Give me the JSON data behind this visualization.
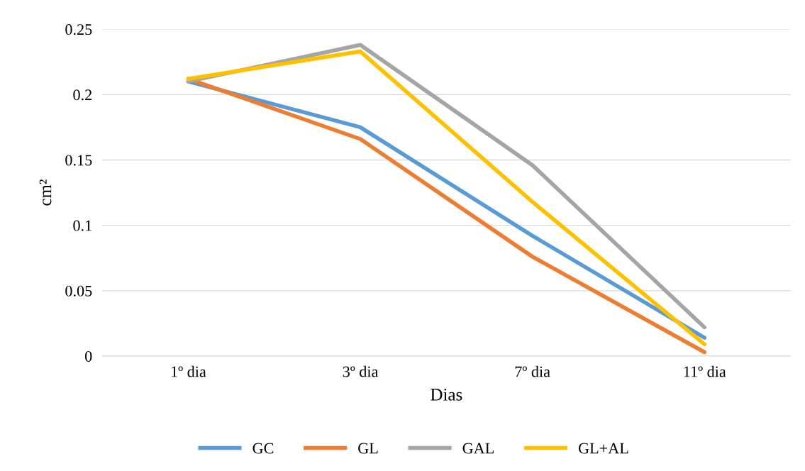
{
  "chart_data": {
    "type": "line",
    "xlabel": "Dias",
    "ylabel": "cm²",
    "categories": [
      "1º dia",
      "3º dia",
      "7º dia",
      "11º dia"
    ],
    "series": [
      {
        "name": "GC",
        "color": "#5b9bd5",
        "values": [
          0.21,
          0.175,
          0.092,
          0.014
        ]
      },
      {
        "name": "GL",
        "color": "#ed7d31",
        "values": [
          0.212,
          0.166,
          0.076,
          0.003
        ]
      },
      {
        "name": "GAL",
        "color": "#a5a5a5",
        "values": [
          0.21,
          0.238,
          0.146,
          0.022
        ]
      },
      {
        "name": "GL+AL",
        "color": "#ffc000",
        "values": [
          0.212,
          0.233,
          0.118,
          0.009
        ]
      }
    ],
    "ylim": [
      0,
      0.25
    ],
    "yticks": [
      0,
      0.05,
      0.1,
      0.15,
      0.2,
      0.25
    ],
    "grid": "y",
    "legend": "bottom",
    "marker": "none",
    "line_style": "solid"
  }
}
